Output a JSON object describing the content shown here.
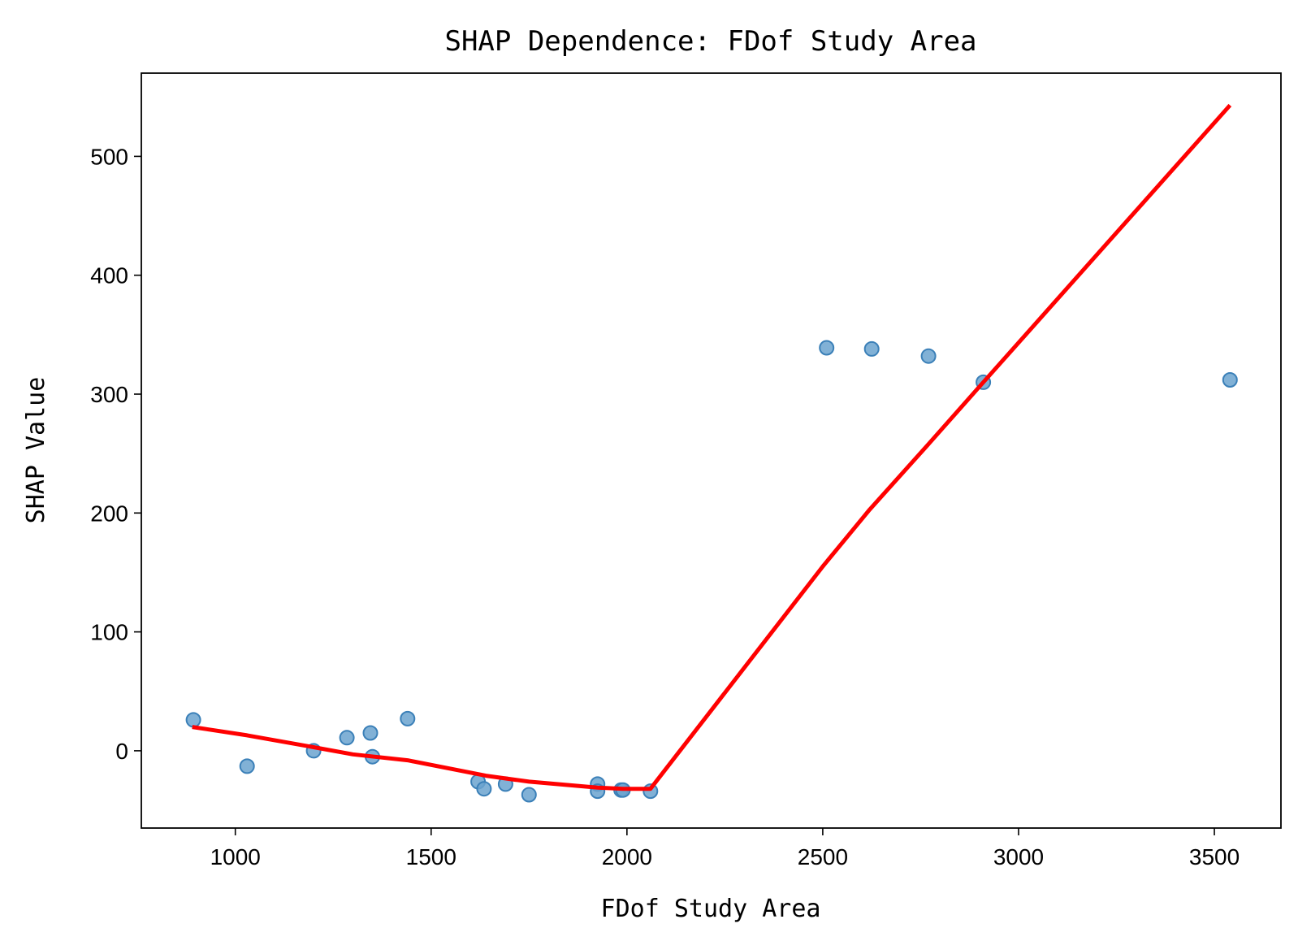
{
  "chart_data": {
    "type": "scatter",
    "title": "SHAP Dependence: FDof Study Area",
    "xlabel": "FDof Study Area",
    "ylabel": "SHAP Value",
    "xlim": [
      760,
      3670
    ],
    "ylim": [
      -65,
      570
    ],
    "xticks": [
      1000,
      1500,
      2000,
      2500,
      3000,
      3500
    ],
    "yticks": [
      0,
      100,
      200,
      300,
      400,
      500
    ],
    "grid": false,
    "colors": {
      "points_fill": "#6ba3cf",
      "points_stroke": "#3b80b8",
      "trend_line": "#ff0000"
    },
    "series": [
      {
        "type": "scatter",
        "x": [
          893,
          1030,
          1200,
          1285,
          1345,
          1350,
          1440,
          1620,
          1635,
          1690,
          1750,
          1925,
          1925,
          1985,
          1990,
          2060,
          2510,
          2625,
          2770,
          2910,
          3540
        ],
        "y": [
          26,
          -13,
          0,
          11,
          15,
          -5,
          27,
          -26,
          -32,
          -28,
          -37,
          -28,
          -34,
          -33,
          -33,
          -34,
          339,
          338,
          332,
          310,
          312
        ]
      },
      {
        "type": "line",
        "x": [
          890,
          1030,
          1200,
          1300,
          1440,
          1640,
          1750,
          1925,
          1990,
          2060,
          2500,
          2620,
          2770,
          2910,
          3540
        ],
        "y": [
          20,
          13,
          3,
          -3,
          -8,
          -21,
          -26,
          -31,
          -32,
          -32,
          155,
          203,
          258,
          310,
          543
        ]
      }
    ]
  }
}
